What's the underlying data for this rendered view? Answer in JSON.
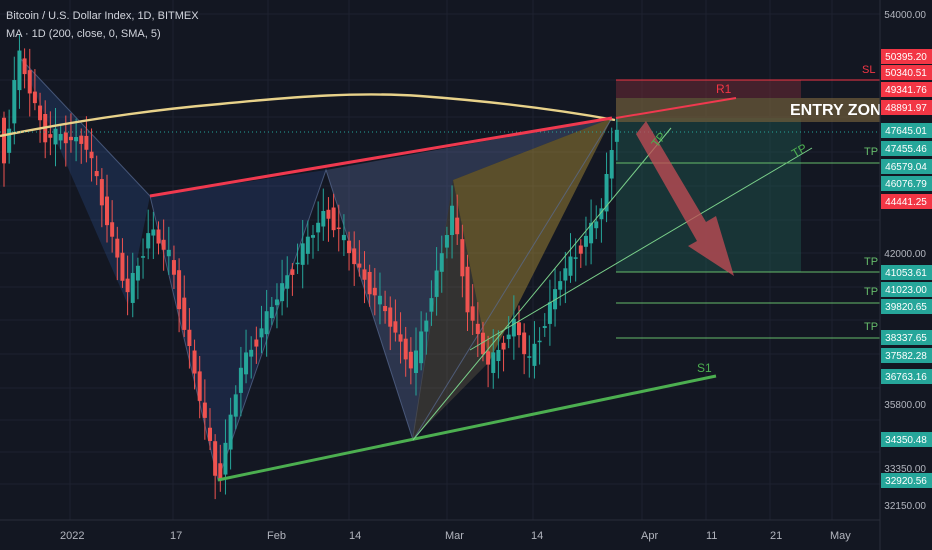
{
  "header": {
    "symbol_line": "Bitcoin / U.S. Dollar Index, 1D, BITMEX",
    "indicator_line": "MA · 1D (200, close, 0, SMA, 5)"
  },
  "colors": {
    "background": "#131722",
    "up": "#26a69a",
    "down": "#ef5350",
    "ma": "#e8d28a",
    "resistance": "#f0394f",
    "support": "#4caf50",
    "tp_line": "#66bb6a",
    "entry_zone": "#6b5a3a"
  },
  "chart_data": {
    "type": "candlestick",
    "title": "Bitcoin / U.S. Dollar Index, 1D, BITMEX",
    "indicator": "MA (200, close, 0, SMA, 5)",
    "ylim": [
      31800,
      54800
    ],
    "x_labels": [
      "2022",
      "17",
      "Feb",
      "14",
      "Mar",
      "14",
      "Apr",
      "11",
      "21",
      "May"
    ],
    "y_ticks": [
      "54000.00",
      "42000.00",
      "35800.00",
      "33350.00",
      "32150.00"
    ],
    "price_labels": [
      {
        "text": "50395.20",
        "value": 50395.2,
        "color": "#f23645"
      },
      {
        "text": "50340.51",
        "value": 50340.51,
        "color": "#f23645"
      },
      {
        "text": "49341.76",
        "value": 49341.76,
        "color": "#f23645"
      },
      {
        "text": "48891.97",
        "value": 48891.97,
        "color": "#f23645"
      },
      {
        "text": "47645.01",
        "value": 47645.01,
        "color": "#26a69a"
      },
      {
        "text": "47455.46",
        "value": 47455.46,
        "color": "#26a69a"
      },
      {
        "text": "46579.04",
        "value": 46579.04,
        "color": "#26a69a"
      },
      {
        "text": "46076.79",
        "value": 46076.79,
        "color": "#26a69a"
      },
      {
        "text": "44441.25",
        "value": 44441.25,
        "color": "#f23645"
      },
      {
        "text": "41053.61",
        "value": 41053.61,
        "color": "#26a69a"
      },
      {
        "text": "41023.00",
        "value": 41023.0,
        "color": "#26a69a"
      },
      {
        "text": "39820.65",
        "value": 39820.65,
        "color": "#26a69a"
      },
      {
        "text": "38337.65",
        "value": 38337.65,
        "color": "#26a69a"
      },
      {
        "text": "37582.28",
        "value": 37582.28,
        "color": "#26a69a"
      },
      {
        "text": "36763.16",
        "value": 36763.16,
        "color": "#26a69a"
      },
      {
        "text": "34350.48",
        "value": 34350.48,
        "color": "#26a69a"
      },
      {
        "text": "32920.56",
        "value": 32920.56,
        "color": "#26a69a"
      }
    ],
    "annotations": {
      "entry_zone": "ENTRY ZONE",
      "sl": "SL",
      "r1": "R1",
      "s1": "S1",
      "tp": "TP"
    }
  }
}
